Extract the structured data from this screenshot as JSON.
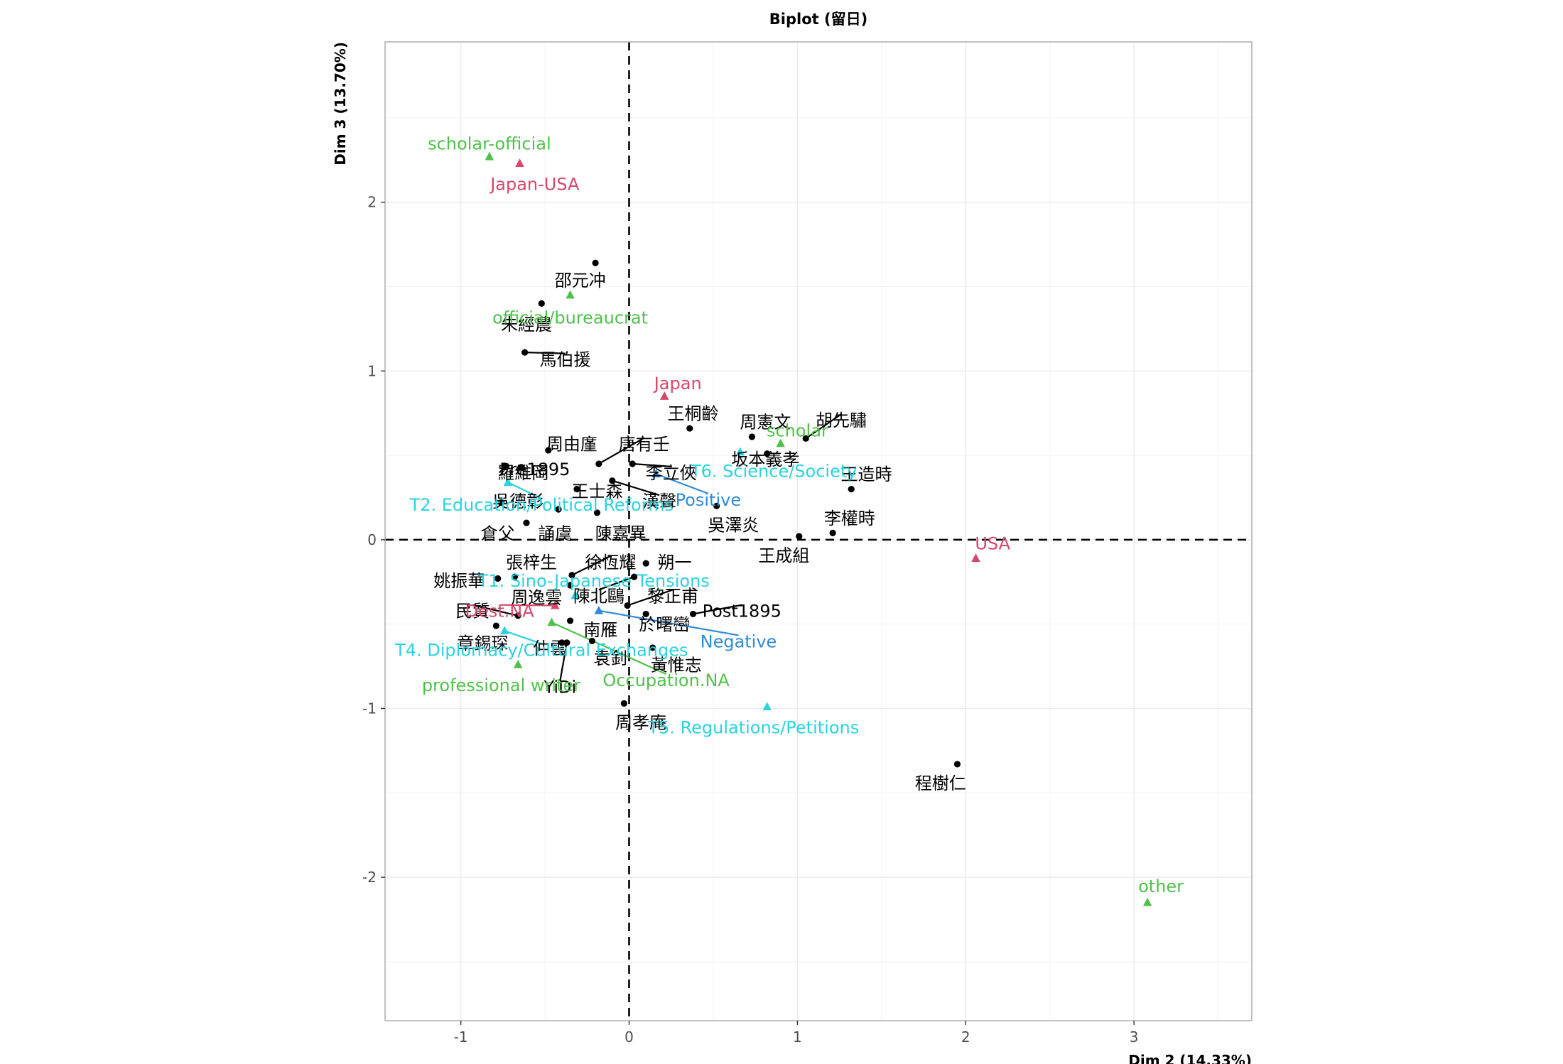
{
  "chart_data": {
    "type": "scatter",
    "title": "Biplot (留日)",
    "xlabel": "Dim 2 (14.33%)",
    "ylabel": "Dim 3 (13.70%)",
    "xlim": [
      -1.45,
      3.7
    ],
    "ylim": [
      -2.85,
      2.95
    ],
    "x_ticks": [
      -1,
      0,
      1,
      2,
      3
    ],
    "y_ticks": [
      -2,
      -1,
      0,
      1,
      2
    ],
    "x_tick_labels": [
      "-1",
      "0",
      "1",
      "2",
      "3"
    ],
    "y_tick_labels": [
      "-2",
      "-1",
      "0",
      "1",
      "2"
    ],
    "grid": true,
    "reference_lines": {
      "x": 0,
      "y": 0,
      "style": "dashed"
    },
    "colors": {
      "individual": "#000000",
      "destination": "#d6476a",
      "occupation": "#4fc14a",
      "topic": "#2ad3e0",
      "attitude": "#2f8bd8"
    },
    "series": [
      {
        "group": "individual",
        "marker": "circle",
        "points": [
          {
            "label": "邵元冲",
            "x": -0.2,
            "y": 1.64,
            "lx": -0.29,
            "ly": 1.54
          },
          {
            "label": "朱經農",
            "x": -0.52,
            "y": 1.4,
            "lx": -0.61,
            "ly": 1.28
          },
          {
            "label": "馬伯援",
            "x": -0.62,
            "y": 1.11,
            "lx": -0.38,
            "ly": 1.07
          },
          {
            "label": "王桐齡",
            "x": 0.36,
            "y": 0.66,
            "lx": 0.38,
            "ly": 0.75
          },
          {
            "label": "周憲文",
            "x": 0.73,
            "y": 0.61,
            "lx": 0.81,
            "ly": 0.7
          },
          {
            "label": "胡先驌",
            "x": 1.05,
            "y": 0.6,
            "lx": 1.26,
            "ly": 0.71
          },
          {
            "label": "坂本義孝",
            "x": 0.82,
            "y": 0.51,
            "lx": 0.81,
            "ly": 0.48
          },
          {
            "label": "周由廑",
            "x": -0.48,
            "y": 0.53,
            "lx": -0.34,
            "ly": 0.57
          },
          {
            "label": "唐有壬",
            "x": -0.18,
            "y": 0.45,
            "lx": 0.09,
            "ly": 0.57
          },
          {
            "label": "王造時",
            "x": 1.32,
            "y": 0.3,
            "lx": 1.41,
            "ly": 0.39
          },
          {
            "label": "李立俠",
            "x": 0.02,
            "y": 0.45,
            "lx": 0.25,
            "ly": 0.4
          },
          {
            "label": "羅維岡",
            "x": -0.74,
            "y": 0.43,
            "lx": -0.63,
            "ly": 0.4
          },
          {
            "label": "Pre1895",
            "x": -0.64,
            "y": 0.43,
            "lx": -0.56,
            "ly": 0.42
          },
          {
            "label": "王士森",
            "x": -0.31,
            "y": 0.3,
            "lx": -0.19,
            "ly": 0.29
          },
          {
            "label": "漢聲",
            "x": -0.1,
            "y": 0.35,
            "lx": 0.18,
            "ly": 0.23
          },
          {
            "label": "吳德彰",
            "x": -0.76,
            "y": 0.22,
            "lx": -0.66,
            "ly": 0.23
          },
          {
            "label": "吳澤炎",
            "x": 0.52,
            "y": 0.2,
            "lx": 0.62,
            "ly": 0.09
          },
          {
            "label": "李權時",
            "x": 1.21,
            "y": 0.04,
            "lx": 1.31,
            "ly": 0.13
          },
          {
            "label": "倉父",
            "x": -0.61,
            "y": 0.1,
            "lx": -0.78,
            "ly": 0.04
          },
          {
            "label": "誦虞",
            "x": -0.42,
            "y": 0.18,
            "lx": -0.44,
            "ly": 0.04
          },
          {
            "label": "陳嘉異",
            "x": -0.19,
            "y": 0.16,
            "lx": -0.05,
            "ly": 0.04
          },
          {
            "label": "王成組",
            "x": 1.01,
            "y": 0.02,
            "lx": 0.92,
            "ly": -0.09
          },
          {
            "label": "張梓生",
            "x": -0.68,
            "y": -0.22,
            "lx": -0.58,
            "ly": -0.13
          },
          {
            "label": "徐恆耀",
            "x": -0.34,
            "y": -0.21,
            "lx": -0.11,
            "ly": -0.13
          },
          {
            "label": "朔一",
            "x": 0.1,
            "y": -0.14,
            "lx": 0.27,
            "ly": -0.13
          },
          {
            "label": "姚振華",
            "x": -0.78,
            "y": -0.23,
            "lx": -1.01,
            "ly": -0.24
          },
          {
            "label": "周逸雲",
            "x": -0.35,
            "y": -0.27,
            "lx": -0.55,
            "ly": -0.34
          },
          {
            "label": "陳北鷗",
            "x": 0.03,
            "y": -0.22,
            "lx": -0.18,
            "ly": -0.33
          },
          {
            "label": "黎正甫",
            "x": -0.01,
            "y": -0.39,
            "lx": 0.26,
            "ly": -0.33
          },
          {
            "label": "Post1895",
            "x": 0.38,
            "y": -0.44,
            "lx": 0.67,
            "ly": -0.42
          },
          {
            "label": "民質",
            "x": -0.66,
            "y": -0.45,
            "lx": -0.93,
            "ly": -0.42
          },
          {
            "label": "於曙巒",
            "x": 0.1,
            "y": -0.44,
            "lx": 0.21,
            "ly": -0.5
          },
          {
            "label": "南雁",
            "x": -0.35,
            "y": -0.48,
            "lx": -0.17,
            "ly": -0.53
          },
          {
            "label": "章錫琛",
            "x": -0.79,
            "y": -0.51,
            "lx": -0.87,
            "ly": -0.61
          },
          {
            "label": "仲雲",
            "x": -0.4,
            "y": -0.61,
            "lx": -0.47,
            "ly": -0.64
          },
          {
            "label": "袁釗",
            "x": -0.22,
            "y": -0.6,
            "lx": -0.11,
            "ly": -0.7
          },
          {
            "label": "黃惟志",
            "x": 0.14,
            "y": -0.64,
            "lx": 0.28,
            "ly": -0.74
          },
          {
            "label": "YiDi",
            "x": -0.37,
            "y": -0.61,
            "lx": -0.41,
            "ly": -0.87
          },
          {
            "label": "周孝庵",
            "x": -0.03,
            "y": -0.97,
            "lx": 0.07,
            "ly": -1.08
          },
          {
            "label": "程樹仁",
            "x": 1.95,
            "y": -1.33,
            "lx": 1.85,
            "ly": -1.44
          }
        ]
      },
      {
        "group": "destination",
        "marker": "triangle",
        "points": [
          {
            "label": "Japan-USA",
            "x": -0.65,
            "y": 2.23,
            "lx": -0.56,
            "ly": 2.11
          },
          {
            "label": "Japan",
            "x": 0.21,
            "y": 0.85,
            "lx": 0.29,
            "ly": 0.93
          },
          {
            "label": "USA",
            "x": 2.06,
            "y": -0.11,
            "lx": 2.16,
            "ly": -0.02
          },
          {
            "label": "Dest.NA",
            "x": -0.44,
            "y": -0.39,
            "lx": -0.77,
            "ly": -0.42
          }
        ]
      },
      {
        "group": "occupation",
        "marker": "triangle",
        "points": [
          {
            "label": "scholar-official",
            "x": -0.83,
            "y": 2.27,
            "lx": -0.83,
            "ly": 2.35
          },
          {
            "label": "official/bureaucrat",
            "x": -0.35,
            "y": 1.45,
            "lx": -0.35,
            "ly": 1.32
          },
          {
            "label": "scholar",
            "x": 0.9,
            "y": 0.57,
            "lx": 1.0,
            "ly": 0.65
          },
          {
            "label": "professional writer",
            "x": -0.66,
            "y": -0.74,
            "lx": -0.76,
            "ly": -0.86
          },
          {
            "label": "Occupation.NA",
            "x": -0.46,
            "y": -0.49,
            "lx": 0.22,
            "ly": -0.83
          },
          {
            "label": "other",
            "x": 3.08,
            "y": -2.15,
            "lx": 3.16,
            "ly": -2.05
          }
        ]
      },
      {
        "group": "topic",
        "marker": "triangle",
        "points": [
          {
            "label": "T6. Science/Society",
            "x": 0.66,
            "y": 0.52,
            "lx": 0.86,
            "ly": 0.41
          },
          {
            "label": "T2. Education/Political Reforms",
            "x": -0.72,
            "y": 0.34,
            "lx": -0.52,
            "ly": 0.21
          },
          {
            "label": "T1. Sino-Japanese Tensions",
            "x": -0.32,
            "y": -0.33,
            "lx": -0.21,
            "ly": -0.24
          },
          {
            "label": "T4. Diplomacy/Cultural Exchanges",
            "x": -0.74,
            "y": -0.54,
            "lx": -0.52,
            "ly": -0.65
          },
          {
            "label": "T5. Regulations/Petitions",
            "x": 0.82,
            "y": -0.99,
            "lx": 0.74,
            "ly": -1.11
          }
        ]
      },
      {
        "group": "attitude",
        "marker": "triangle",
        "points": [
          {
            "label": "Positive",
            "x": 0.16,
            "y": 0.39,
            "lx": 0.47,
            "ly": 0.24
          },
          {
            "label": "Negative",
            "x": -0.18,
            "y": -0.42,
            "lx": 0.65,
            "ly": -0.6
          }
        ]
      }
    ]
  }
}
